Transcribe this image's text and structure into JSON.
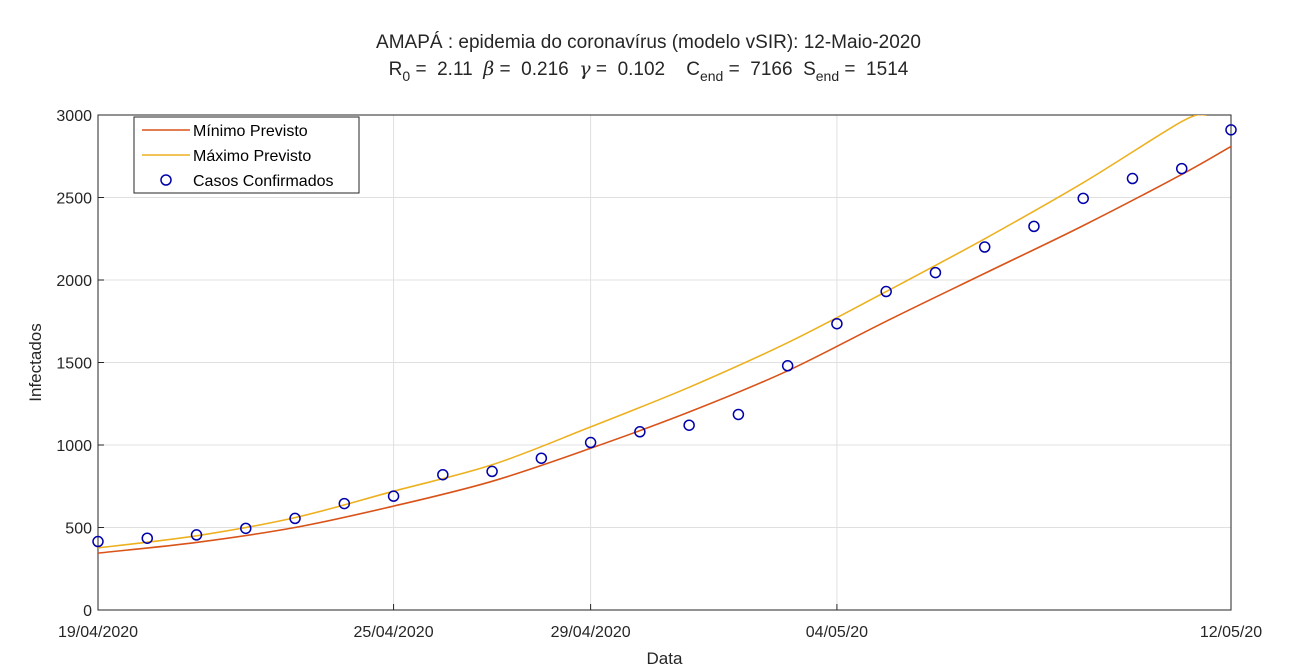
{
  "chart_data": {
    "type": "line",
    "title": "AMAPÁ : epidemia do coronavírus (modelo vSIR): 12-Maio-2020",
    "subtitle_parts": [
      {
        "text": "R",
        "style": "normal"
      },
      {
        "text": "0",
        "style": "sub"
      },
      {
        "text": " =  2.11  ",
        "style": "normal"
      },
      {
        "text": "β",
        "style": "greek"
      },
      {
        "text": " =  0.216  ",
        "style": "normal"
      },
      {
        "text": "γ",
        "style": "greek"
      },
      {
        "text": " =  0.102    C",
        "style": "normal"
      },
      {
        "text": "end",
        "style": "sub"
      },
      {
        "text": " =  7166  S",
        "style": "normal"
      },
      {
        "text": "end",
        "style": "sub"
      },
      {
        "text": " =  1514",
        "style": "normal"
      }
    ],
    "xlabel": "Data",
    "ylabel": "Infectados",
    "xlim": [
      0,
      23
    ],
    "ylim": [
      0,
      3000
    ],
    "x_ticks": [
      {
        "x": 0,
        "label": "19/04/2020"
      },
      {
        "x": 6,
        "label": "25/04/2020"
      },
      {
        "x": 10,
        "label": "29/04/2020"
      },
      {
        "x": 15,
        "label": "04/05/20"
      },
      {
        "x": 23,
        "label": "12/05/20"
      }
    ],
    "y_ticks": [
      0,
      500,
      1000,
      1500,
      2000,
      2500,
      3000
    ],
    "grid": true,
    "legend_position": "top-left",
    "series": [
      {
        "name": "Mínimo Previsto",
        "kind": "line",
        "color": "#d95319",
        "x": [
          0,
          2,
          4,
          6,
          8,
          10,
          12,
          14,
          16,
          18,
          20,
          22,
          23
        ],
        "y": [
          345,
          410,
          500,
          630,
          780,
          980,
          1200,
          1450,
          1750,
          2040,
          2330,
          2640,
          2810
        ]
      },
      {
        "name": "Máximo Previsto",
        "kind": "line",
        "color": "#edb120",
        "x": [
          -0.2,
          2,
          4,
          6,
          8,
          10,
          12,
          14,
          16,
          18,
          20,
          22,
          22.5
        ],
        "y": [
          370,
          450,
          560,
          720,
          880,
          1110,
          1350,
          1620,
          1930,
          2250,
          2590,
          2960,
          3000
        ]
      },
      {
        "name": "Casos Confirmados",
        "kind": "markers",
        "color": "#0000aa",
        "x": [
          0,
          1,
          2,
          3,
          4,
          5,
          6,
          7,
          8,
          9,
          10,
          11,
          12,
          13,
          14,
          15,
          16,
          17,
          18,
          19,
          20,
          21,
          22,
          23
        ],
        "y": [
          415,
          435,
          455,
          495,
          555,
          645,
          690,
          820,
          840,
          920,
          1015,
          1080,
          1120,
          1185,
          1480,
          1735,
          1930,
          2045,
          2200,
          2325,
          2495,
          2615,
          2675,
          2910
        ]
      }
    ]
  }
}
